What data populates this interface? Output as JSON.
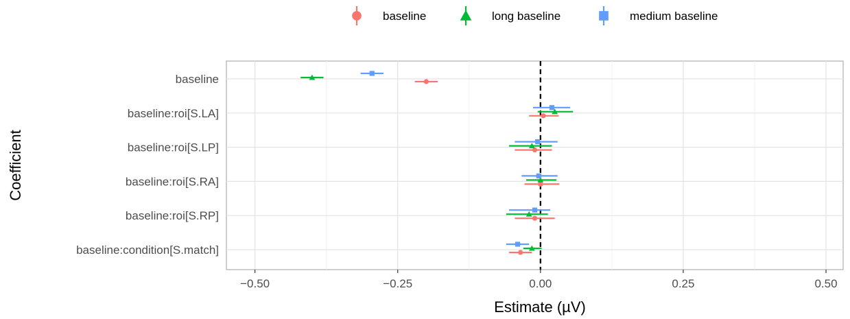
{
  "chart_data": {
    "type": "scatter",
    "subtype": "coefficient-plot-with-error-bars",
    "xlabel": "Estimate (µV)",
    "ylabel": "Coefficient",
    "xlim": [
      -0.55,
      0.53
    ],
    "xticks": [
      -0.5,
      -0.25,
      0.0,
      0.25,
      0.5
    ],
    "xtick_labels": [
      "−0.50",
      "−0.25",
      "0.00",
      "0.25",
      "0.50"
    ],
    "categories": [
      "baseline",
      "baseline:roi[S.LA]",
      "baseline:roi[S.LP]",
      "baseline:roi[S.RA]",
      "baseline:roi[S.RP]",
      "baseline:condition[S.match]"
    ],
    "reference_line": {
      "x": 0,
      "style": "dashed"
    },
    "grid": true,
    "legend_position": "top",
    "series": [
      {
        "name": "baseline",
        "color": "#F8766D",
        "marker": "circle",
        "estimates": [
          -0.2,
          0.005,
          -0.01,
          0.0,
          -0.01,
          -0.035
        ],
        "lower": [
          -0.22,
          -0.02,
          -0.045,
          -0.028,
          -0.045,
          -0.055
        ],
        "upper": [
          -0.18,
          0.032,
          0.02,
          0.033,
          0.025,
          -0.015
        ]
      },
      {
        "name": "long baseline",
        "color": "#00BA38",
        "marker": "triangle",
        "estimates": [
          -0.4,
          0.025,
          -0.015,
          0.0,
          -0.02,
          -0.015
        ],
        "lower": [
          -0.42,
          -0.005,
          -0.055,
          -0.025,
          -0.06,
          -0.03
        ],
        "upper": [
          -0.38,
          0.057,
          0.02,
          0.028,
          0.013,
          0.002
        ]
      },
      {
        "name": "medium baseline",
        "color": "#619CFF",
        "marker": "square",
        "estimates": [
          -0.295,
          0.02,
          -0.005,
          -0.003,
          -0.01,
          -0.04
        ],
        "lower": [
          -0.315,
          -0.013,
          -0.045,
          -0.033,
          -0.055,
          -0.06
        ],
        "upper": [
          -0.275,
          0.052,
          0.03,
          0.03,
          0.017,
          -0.02
        ]
      }
    ]
  }
}
